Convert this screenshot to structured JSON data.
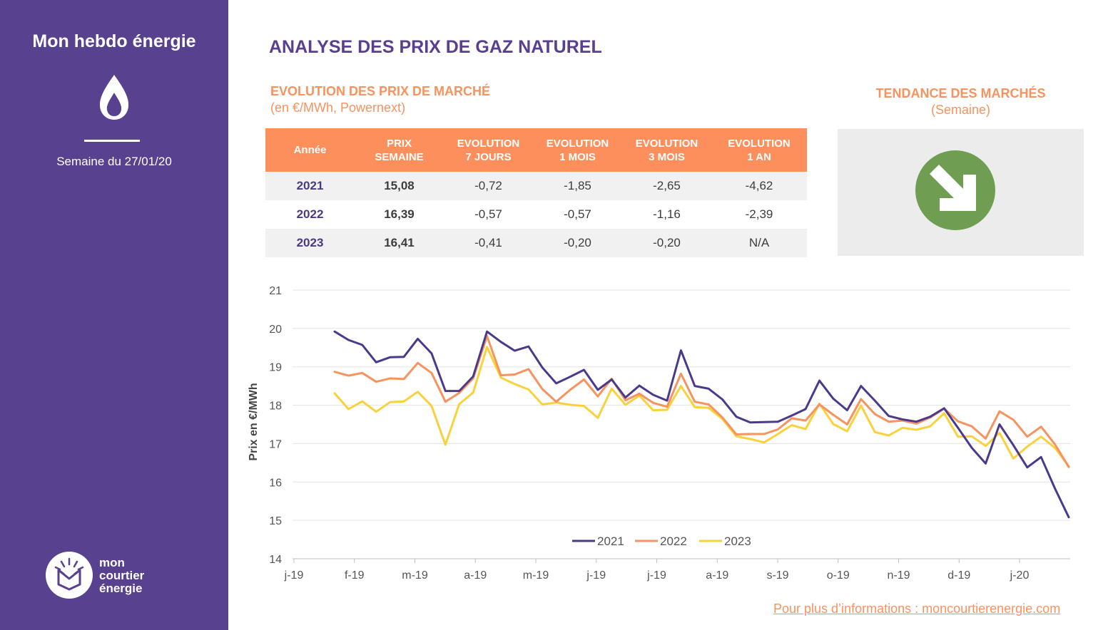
{
  "sidebar": {
    "title": "Mon hebdo énergie",
    "week": "Semaine du 27/01/20",
    "logo_text": [
      "mon",
      "courtier",
      "énergie"
    ]
  },
  "main_title": "ANALYSE DES PRIX DE GAZ NATUREL",
  "table": {
    "title": "EVOLUTION DES PRIX DE MARCHÉ",
    "subtitle": "(en €/MWh, Powernext)",
    "headers": [
      [
        "Année"
      ],
      [
        "PRIX",
        "SEMAINE"
      ],
      [
        "EVOLUTION",
        "7 JOURS"
      ],
      [
        "EVOLUTION",
        "1 MOIS"
      ],
      [
        "EVOLUTION",
        "3 MOIS"
      ],
      [
        "EVOLUTION",
        "1 AN"
      ]
    ],
    "rows": [
      [
        "2021",
        "15,08",
        "-0,72",
        "-1,85",
        "-2,65",
        "-4,62"
      ],
      [
        "2022",
        "16,39",
        "-0,57",
        "-0,57",
        "-1,16",
        "-2,39"
      ],
      [
        "2023",
        "16,41",
        "-0,41",
        "-0,20",
        "-0,20",
        "N/A"
      ]
    ]
  },
  "trend": {
    "title": "TENDANCE DES MARCHÉS",
    "subtitle": "(Semaine)",
    "direction": "down",
    "icon": "down-right-arrow-icon",
    "color": "#6f9e53"
  },
  "chart_data": {
    "type": "line",
    "title": "",
    "ylabel": "Prix en €/MWh",
    "xlabel": "",
    "ylim": [
      14,
      21
    ],
    "yticks": [
      21,
      20,
      19,
      18,
      17,
      16,
      15,
      14
    ],
    "xticks": [
      "j-19",
      "f-19",
      "m-19",
      "a-19",
      "m-19",
      "j-19",
      "j-19",
      "a-19",
      "s-19",
      "o-19",
      "n-19",
      "d-19",
      "j-20"
    ],
    "legend_position": "bottom",
    "grid": "horizontal",
    "series": [
      {
        "name": "2021",
        "color": "#4b3a8a",
        "values": [
          19.92,
          19.7,
          19.57,
          19.12,
          19.25,
          19.26,
          19.73,
          19.35,
          18.37,
          18.37,
          18.75,
          19.92,
          19.65,
          19.42,
          19.53,
          18.98,
          18.57,
          18.74,
          18.92,
          18.4,
          18.67,
          18.2,
          18.51,
          18.27,
          18.12,
          19.43,
          18.5,
          18.43,
          18.15,
          17.7,
          17.55,
          17.56,
          17.57,
          17.73,
          17.9,
          18.64,
          18.17,
          17.87,
          18.5,
          18.12,
          17.72,
          17.63,
          17.57,
          17.7,
          17.92,
          17.41,
          16.89,
          16.48,
          17.5,
          16.96,
          16.38,
          16.65,
          15.83,
          15.08
        ]
      },
      {
        "name": "2022",
        "color": "#f7935f",
        "values": [
          18.87,
          18.77,
          18.84,
          18.61,
          18.7,
          18.68,
          19.1,
          18.84,
          18.09,
          18.32,
          18.7,
          19.8,
          18.78,
          18.8,
          18.94,
          18.42,
          18.09,
          18.4,
          18.67,
          18.23,
          18.69,
          18.13,
          18.3,
          18.06,
          17.96,
          18.82,
          18.09,
          18.02,
          17.68,
          17.24,
          17.25,
          17.25,
          17.37,
          17.66,
          17.6,
          18.02,
          17.75,
          17.5,
          18.16,
          17.77,
          17.57,
          17.6,
          17.52,
          17.68,
          17.91,
          17.58,
          17.45,
          17.13,
          17.84,
          17.62,
          17.18,
          17.44,
          16.98,
          16.39
        ]
      },
      {
        "name": "2023",
        "color": "#f9d23b",
        "values": [
          18.31,
          17.9,
          18.1,
          17.83,
          18.08,
          18.1,
          18.35,
          17.98,
          16.97,
          18.03,
          18.33,
          19.52,
          18.72,
          18.55,
          18.41,
          18.02,
          18.07,
          18.01,
          17.98,
          17.67,
          18.43,
          18.01,
          18.25,
          17.87,
          17.88,
          18.5,
          17.95,
          17.93,
          17.64,
          17.19,
          17.12,
          17.03,
          17.25,
          17.48,
          17.38,
          18.04,
          17.51,
          17.32,
          17.99,
          17.3,
          17.21,
          17.41,
          17.36,
          17.45,
          17.79,
          17.18,
          17.19,
          16.94,
          17.28,
          16.61,
          16.92,
          17.18,
          16.89,
          16.41
        ]
      }
    ]
  },
  "footer": {
    "link": "Pour plus d’informations : moncourtierenergie.com"
  }
}
